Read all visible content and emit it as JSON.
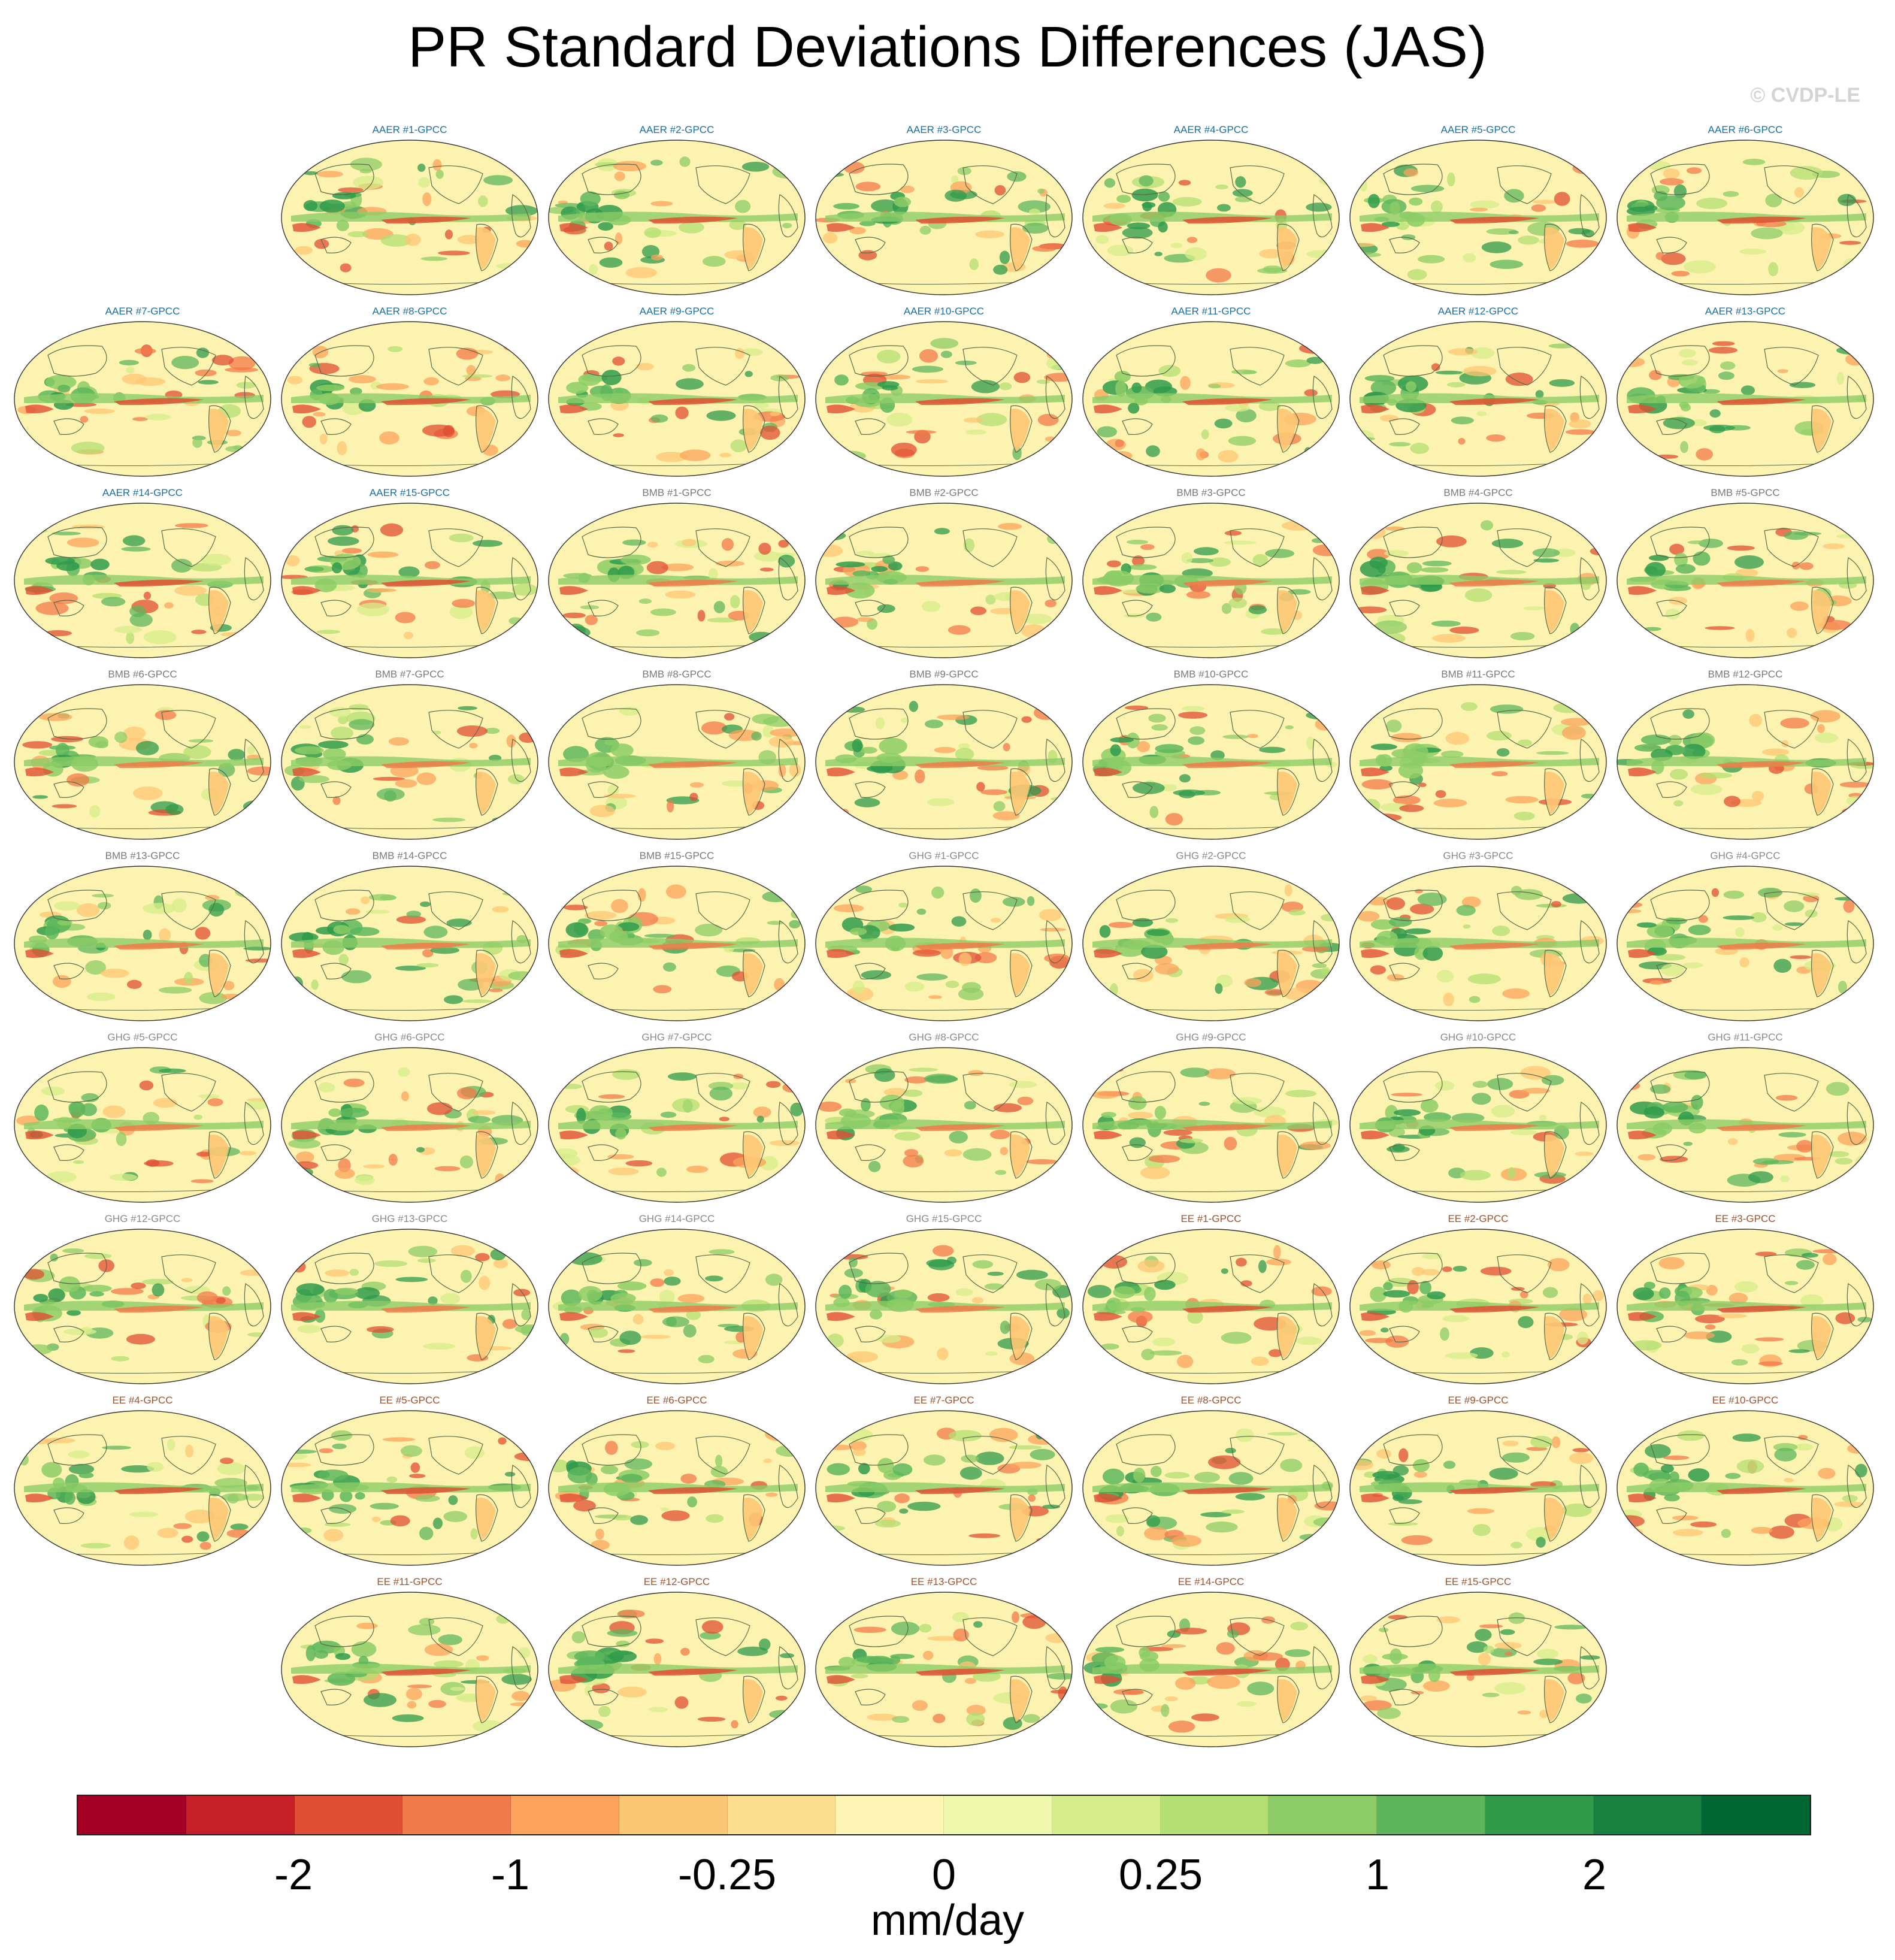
{
  "title": "PR Standard Deviations Differences (JAS)",
  "credit": "© CVDP-LE",
  "colors": {
    "AAER": "#1a6fa3",
    "BMB": "#7a7a7a",
    "GHG": "#8a8a8a",
    "EE": "#a0522d",
    "coastline": "#5a6b4a",
    "ocean_base": "#fdf3b0"
  },
  "panels": [
    {
      "label": "AAER #1-GPCC",
      "group": "AAER"
    },
    {
      "label": "AAER #2-GPCC",
      "group": "AAER"
    },
    {
      "label": "AAER #3-GPCC",
      "group": "AAER"
    },
    {
      "label": "AAER #4-GPCC",
      "group": "AAER"
    },
    {
      "label": "AAER #5-GPCC",
      "group": "AAER"
    },
    {
      "label": "AAER #6-GPCC",
      "group": "AAER"
    },
    {
      "label": "AAER #7-GPCC",
      "group": "AAER"
    },
    {
      "label": "AAER #8-GPCC",
      "group": "AAER"
    },
    {
      "label": "AAER #9-GPCC",
      "group": "AAER"
    },
    {
      "label": "AAER #10-GPCC",
      "group": "AAER"
    },
    {
      "label": "AAER #11-GPCC",
      "group": "AAER"
    },
    {
      "label": "AAER #12-GPCC",
      "group": "AAER"
    },
    {
      "label": "AAER #13-GPCC",
      "group": "AAER"
    },
    {
      "label": "AAER #14-GPCC",
      "group": "AAER"
    },
    {
      "label": "AAER #15-GPCC",
      "group": "AAER"
    },
    {
      "label": "BMB #1-GPCC",
      "group": "BMB"
    },
    {
      "label": "BMB #2-GPCC",
      "group": "BMB"
    },
    {
      "label": "BMB #3-GPCC",
      "group": "BMB"
    },
    {
      "label": "BMB #4-GPCC",
      "group": "BMB"
    },
    {
      "label": "BMB #5-GPCC",
      "group": "BMB"
    },
    {
      "label": "BMB #6-GPCC",
      "group": "BMB"
    },
    {
      "label": "BMB #7-GPCC",
      "group": "BMB"
    },
    {
      "label": "BMB #8-GPCC",
      "group": "BMB"
    },
    {
      "label": "BMB #9-GPCC",
      "group": "BMB"
    },
    {
      "label": "BMB #10-GPCC",
      "group": "BMB"
    },
    {
      "label": "BMB #11-GPCC",
      "group": "BMB"
    },
    {
      "label": "BMB #12-GPCC",
      "group": "BMB"
    },
    {
      "label": "BMB #13-GPCC",
      "group": "BMB"
    },
    {
      "label": "BMB #14-GPCC",
      "group": "BMB"
    },
    {
      "label": "BMB #15-GPCC",
      "group": "BMB"
    },
    {
      "label": "GHG #1-GPCC",
      "group": "GHG"
    },
    {
      "label": "GHG #2-GPCC",
      "group": "GHG"
    },
    {
      "label": "GHG #3-GPCC",
      "group": "GHG"
    },
    {
      "label": "GHG #4-GPCC",
      "group": "GHG"
    },
    {
      "label": "GHG #5-GPCC",
      "group": "GHG"
    },
    {
      "label": "GHG #6-GPCC",
      "group": "GHG"
    },
    {
      "label": "GHG #7-GPCC",
      "group": "GHG"
    },
    {
      "label": "GHG #8-GPCC",
      "group": "GHG"
    },
    {
      "label": "GHG #9-GPCC",
      "group": "GHG"
    },
    {
      "label": "GHG #10-GPCC",
      "group": "GHG"
    },
    {
      "label": "GHG #11-GPCC",
      "group": "GHG"
    },
    {
      "label": "GHG #12-GPCC",
      "group": "GHG"
    },
    {
      "label": "GHG #13-GPCC",
      "group": "GHG"
    },
    {
      "label": "GHG #14-GPCC",
      "group": "GHG"
    },
    {
      "label": "GHG #15-GPCC",
      "group": "GHG"
    },
    {
      "label": "EE #1-GPCC",
      "group": "EE"
    },
    {
      "label": "EE #2-GPCC",
      "group": "EE"
    },
    {
      "label": "EE #3-GPCC",
      "group": "EE"
    },
    {
      "label": "EE #4-GPCC",
      "group": "EE"
    },
    {
      "label": "EE #5-GPCC",
      "group": "EE"
    },
    {
      "label": "EE #6-GPCC",
      "group": "EE"
    },
    {
      "label": "EE #7-GPCC",
      "group": "EE"
    },
    {
      "label": "EE #8-GPCC",
      "group": "EE"
    },
    {
      "label": "EE #9-GPCC",
      "group": "EE"
    },
    {
      "label": "EE #10-GPCC",
      "group": "EE"
    },
    {
      "label": "EE #11-GPCC",
      "group": "EE"
    },
    {
      "label": "EE #12-GPCC",
      "group": "EE"
    },
    {
      "label": "EE #13-GPCC",
      "group": "EE"
    },
    {
      "label": "EE #14-GPCC",
      "group": "EE"
    },
    {
      "label": "EE #15-GPCC",
      "group": "EE"
    }
  ],
  "colorbar": {
    "units": "mm/day",
    "colors": [
      "#a50026",
      "#c71f27",
      "#e04f33",
      "#f17a4a",
      "#fba35c",
      "#fdc674",
      "#fde08e",
      "#fef5b4",
      "#eff8ac",
      "#d5ee89",
      "#b3df73",
      "#8ccc66",
      "#5db65c",
      "#2f9b4b",
      "#17823f",
      "#006633"
    ],
    "tick_labels": [
      {
        "label": "-2",
        "boundary": 2
      },
      {
        "label": "-1",
        "boundary": 4
      },
      {
        "label": "-0.25",
        "boundary": 6
      },
      {
        "label": "0",
        "boundary": 8
      },
      {
        "label": "0.25",
        "boundary": 10
      },
      {
        "label": "1",
        "boundary": 12
      },
      {
        "label": "2",
        "boundary": 14
      }
    ]
  }
}
